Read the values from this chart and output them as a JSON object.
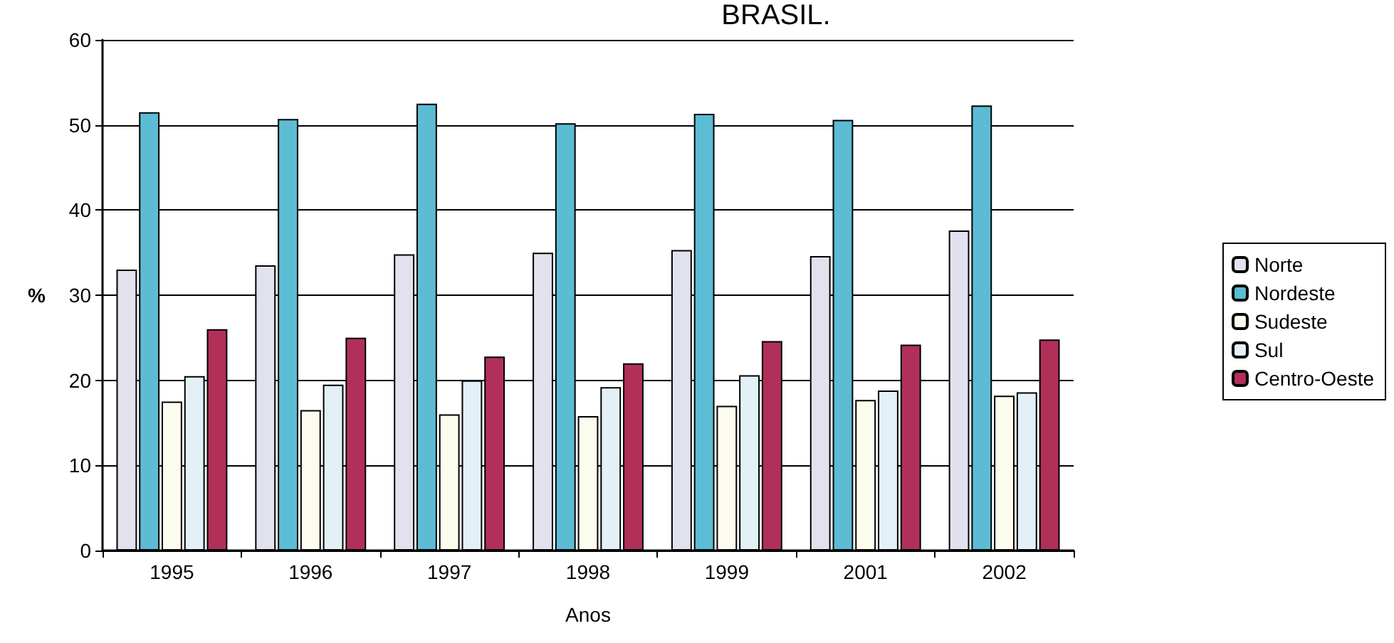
{
  "chart_data": {
    "type": "bar",
    "title": "BRASIL.",
    "xlabel": "Anos",
    "ylabel": "%",
    "categories": [
      "1995",
      "1996",
      "1997",
      "1998",
      "1999",
      "2001",
      "2002"
    ],
    "series": [
      {
        "name": "Norte",
        "color": "#e2e2ee",
        "values": [
          33,
          33.5,
          34.8,
          35,
          35.3,
          34.6,
          37.6
        ]
      },
      {
        "name": "Nordeste",
        "color": "#5bbcd4",
        "values": [
          51.5,
          50.7,
          52.5,
          50.2,
          51.3,
          50.6,
          52.3
        ]
      },
      {
        "name": "Sudeste",
        "color": "#fbfbee",
        "values": [
          17.5,
          16.5,
          16,
          15.8,
          17,
          17.7,
          18.2
        ]
      },
      {
        "name": "Sul",
        "color": "#e4f0f8",
        "values": [
          20.5,
          19.5,
          20,
          19.2,
          20.6,
          18.8,
          18.6
        ]
      },
      {
        "name": "Centro-Oeste",
        "color": "#b03059",
        "values": [
          26,
          25,
          22.8,
          22,
          24.6,
          24.2,
          24.8
        ]
      }
    ],
    "ylim": [
      0,
      60
    ],
    "yticks": [
      0,
      10,
      20,
      30,
      40,
      50,
      60
    ],
    "grid": "y",
    "legend": "right"
  }
}
